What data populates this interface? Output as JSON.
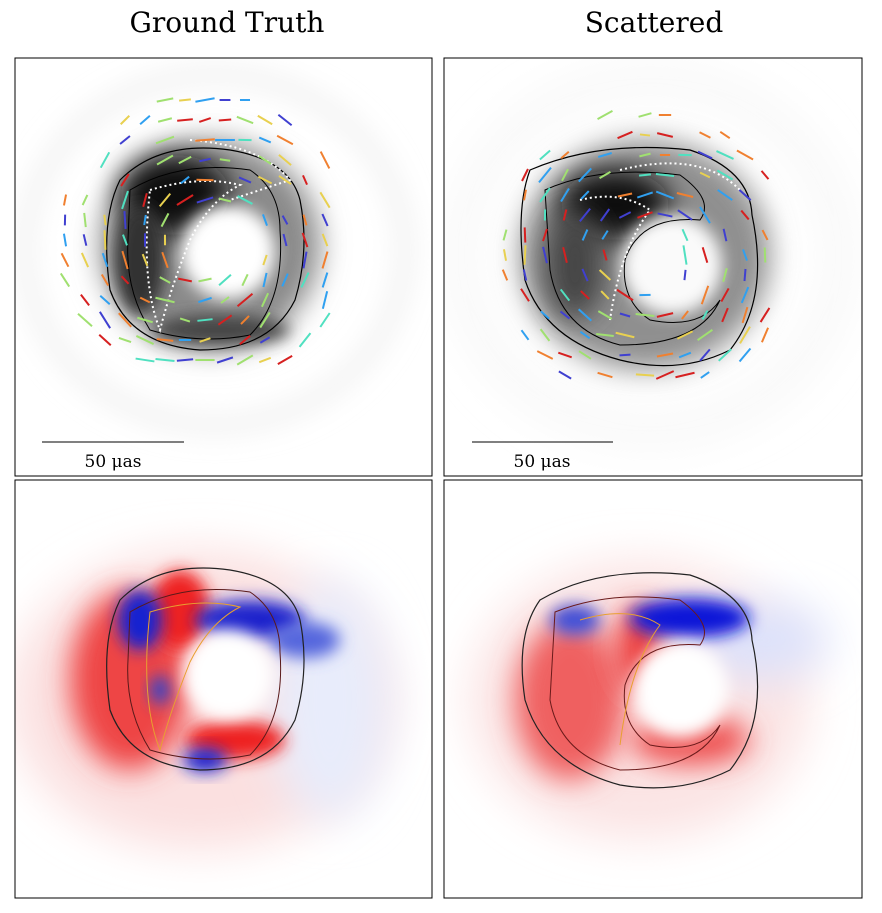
{
  "columns": [
    {
      "title": "Ground Truth",
      "scale_bar": "50 μas"
    },
    {
      "title": "Scattered",
      "scale_bar": "50 μas"
    }
  ]
}
